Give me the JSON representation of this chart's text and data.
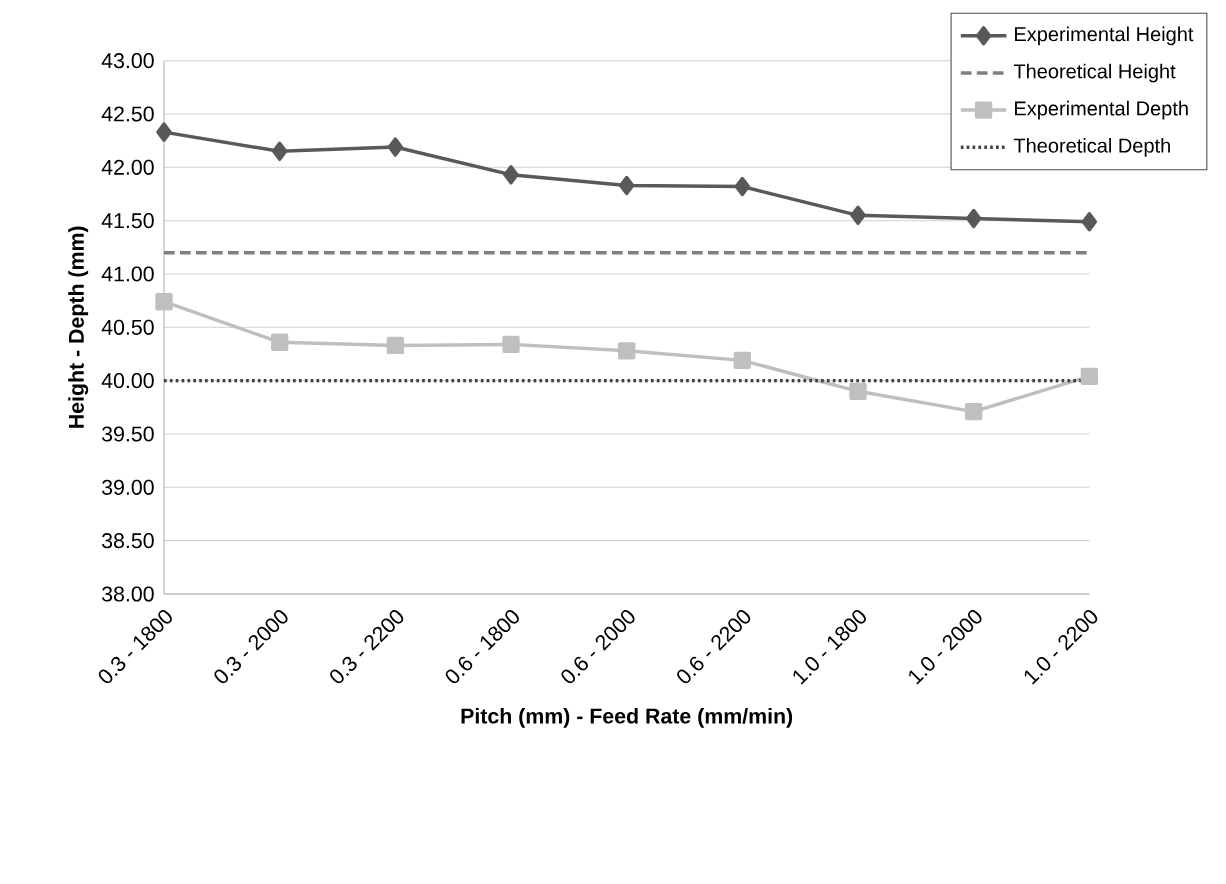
{
  "chart_data": {
    "type": "line",
    "xlabel": "Pitch (mm) - Feed Rate (mm/min)",
    "ylabel": "Height - Depth (mm)",
    "categories": [
      "0.3 - 1800",
      "0.3 - 2000",
      "0.3 - 2200",
      "0.6 - 1800",
      "0.6 - 2000",
      "0.6 - 2200",
      "1.0 - 1800",
      "1.0 - 2000",
      "1.0 - 2200"
    ],
    "ylim": [
      38,
      43
    ],
    "yticks": [
      {
        "value": 38,
        "label": "38.00"
      },
      {
        "value": 38.5,
        "label": "38.50"
      },
      {
        "value": 39,
        "label": "39.00"
      },
      {
        "value": 39.5,
        "label": "39.50"
      },
      {
        "value": 40,
        "label": "40.00"
      },
      {
        "value": 40.5,
        "label": "40.50"
      },
      {
        "value": 41,
        "label": "41.00"
      },
      {
        "value": 41.5,
        "label": "41.50"
      },
      {
        "value": 42,
        "label": "42.00"
      },
      {
        "value": 42.5,
        "label": "42.50"
      },
      {
        "value": 43,
        "label": "43.00"
      }
    ],
    "grid": "y",
    "legend": "top right",
    "series": [
      {
        "name": "Experimental Height",
        "color": "#595959",
        "marker": "diamond",
        "line_style": "solid",
        "values": [
          42.33,
          42.15,
          42.19,
          41.93,
          41.83,
          41.82,
          41.55,
          41.52,
          41.49
        ]
      },
      {
        "name": "Theoretical Height",
        "color": "#7f7f7f",
        "marker": "none",
        "line_style": "dashed",
        "values": [
          41.2,
          41.2,
          41.2,
          41.2,
          41.2,
          41.2,
          41.2,
          41.2,
          41.2
        ]
      },
      {
        "name": "Experimental Depth",
        "color": "#bfbfbf",
        "marker": "square",
        "line_style": "solid",
        "values": [
          40.74,
          40.36,
          40.33,
          40.34,
          40.28,
          40.19,
          39.9,
          39.71,
          40.04
        ]
      },
      {
        "name": "Theoretical Depth",
        "color": "#404040",
        "marker": "none",
        "line_style": "dotted",
        "values": [
          40,
          40,
          40,
          40,
          40,
          40,
          40,
          40,
          40
        ]
      }
    ]
  }
}
